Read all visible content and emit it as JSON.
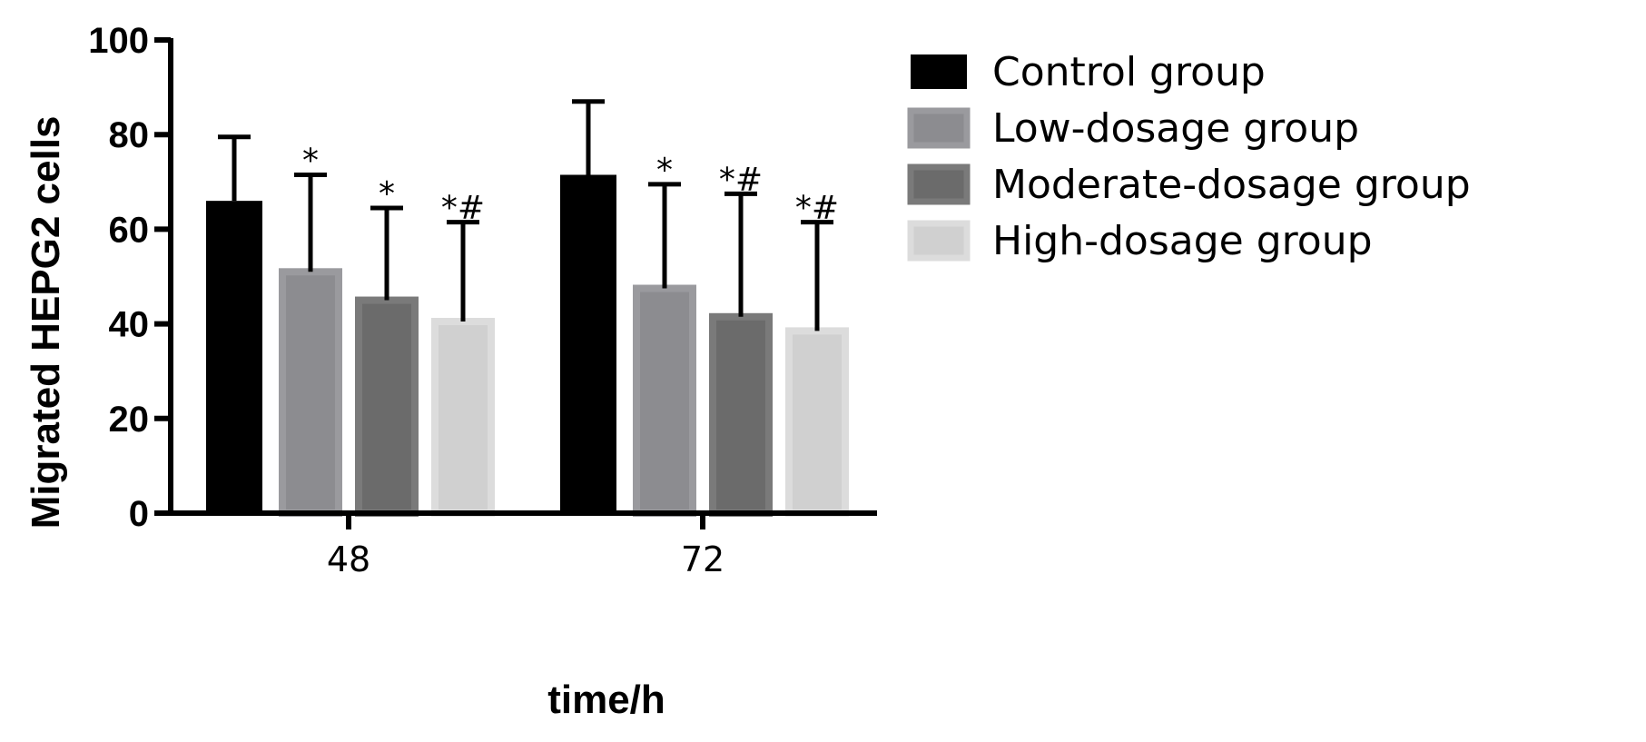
{
  "chart_data": {
    "type": "bar",
    "xlabel": "time/h",
    "ylabel": "Migrated HEPG2 cells",
    "ylim": [
      0,
      100
    ],
    "yticks": [
      "0",
      "20",
      "40",
      "60",
      "80",
      "100"
    ],
    "categories": [
      "48",
      "72"
    ],
    "legend_position": "right",
    "series": [
      {
        "name": "Control group",
        "color": "#000000",
        "values": [
          66,
          71.5
        ],
        "errors": [
          13.5,
          15.5
        ],
        "annotations": [
          "",
          ""
        ]
      },
      {
        "name": "Low-dosage group",
        "color": "#8c8c90",
        "values": [
          51,
          47.5
        ],
        "errors": [
          20.5,
          22.0
        ],
        "annotations": [
          "*",
          "*"
        ]
      },
      {
        "name": "Moderate-dosage group",
        "color": "#6b6b6b",
        "values": [
          45,
          41.5
        ],
        "errors": [
          19.5,
          26.0
        ],
        "annotations": [
          "*",
          "*#"
        ]
      },
      {
        "name": "High-dosage group",
        "color": "#d0d0d0",
        "values": [
          40.5,
          38.5
        ],
        "errors": [
          21.0,
          23.0
        ],
        "annotations": [
          "*#",
          "*#"
        ]
      }
    ]
  }
}
